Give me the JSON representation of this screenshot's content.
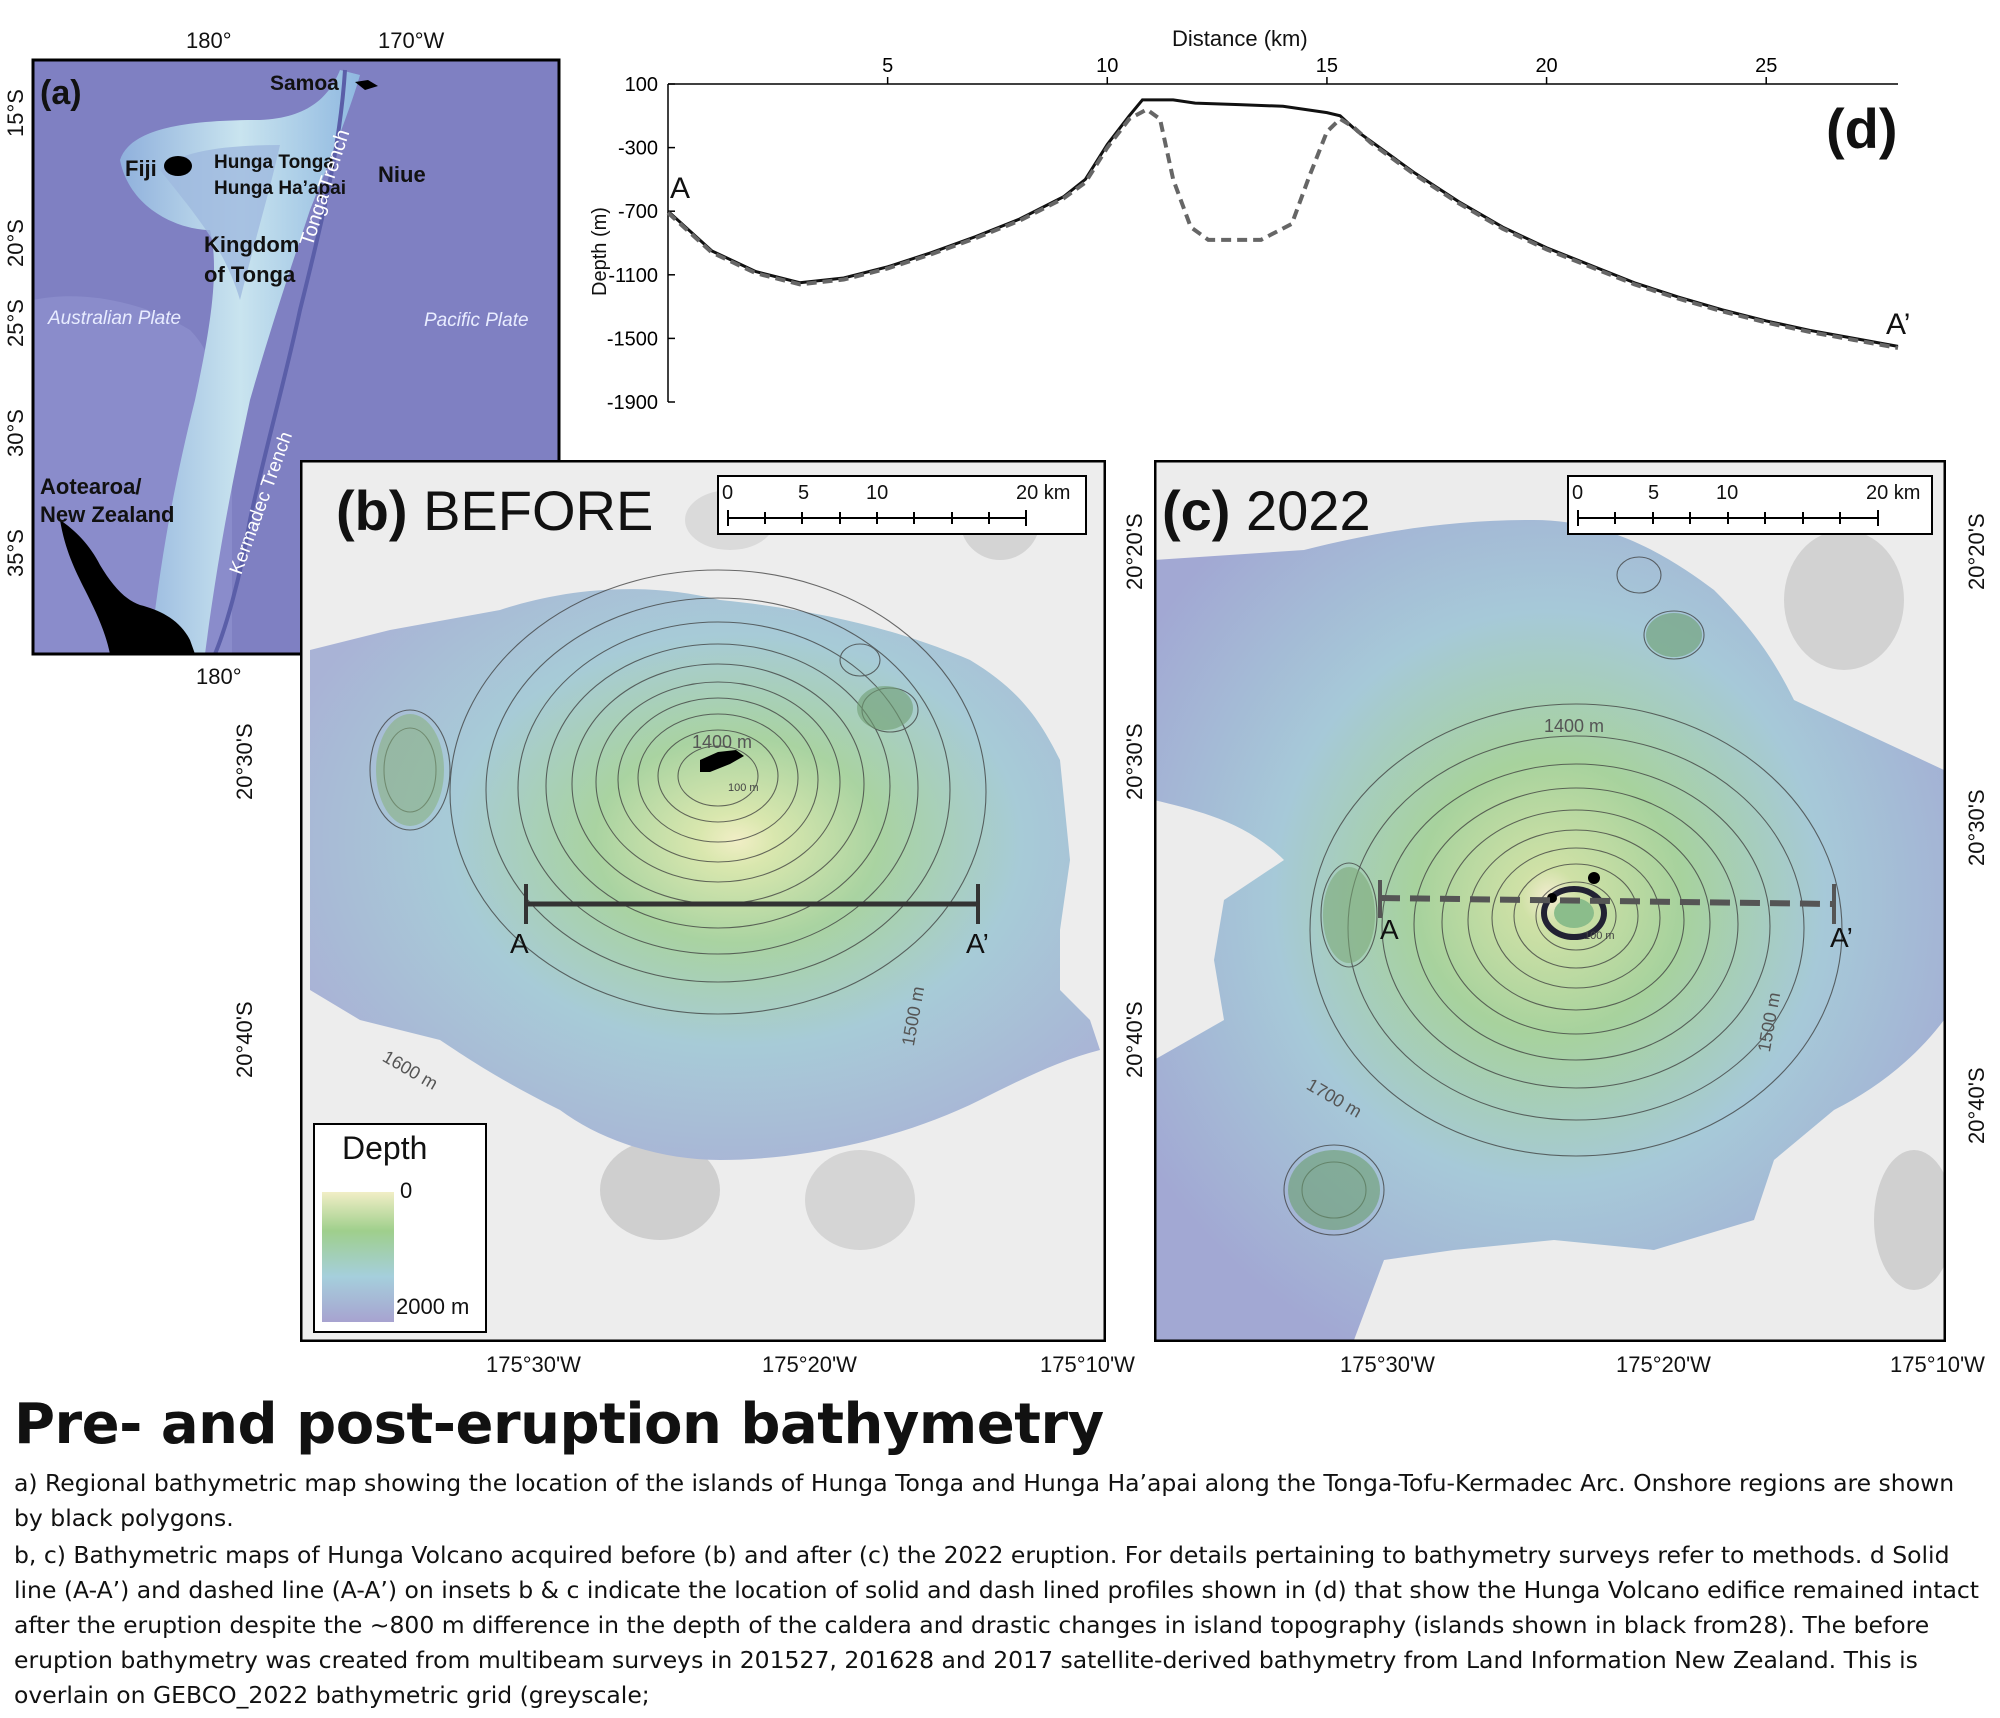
{
  "panel_a": {
    "label": "(a)",
    "top_ticks": [
      "180°",
      "170°W"
    ],
    "bottom_ticks": [
      "180°"
    ],
    "lat_ticks": [
      "15°S",
      "20°S",
      "25°S",
      "30°S",
      "35°S"
    ],
    "places": {
      "samoa": "Samoa",
      "fiji": "Fiji",
      "hunga1": "Hunga Tonga",
      "hunga2": "Hunga Ha’apai",
      "niue": "Niue",
      "kingdom1": "Kingdom",
      "kingdom2": "of Tonga",
      "tonga_trench": "Tonga Trench",
      "australian_plate": "Australian Plate",
      "pacific_plate": "Pacific Plate",
      "kermadec_trench": "Kermadec Trench",
      "nz1": "Aotearoa/",
      "nz2": "New Zealand"
    },
    "colors": {
      "ocean": "#7d7fc0",
      "arc": "#a9cfe4",
      "land": "#000000"
    }
  },
  "panel_d": {
    "label": "(d)",
    "chart_data": {
      "type": "line",
      "title": "",
      "xlabel": "Distance (km)",
      "ylabel": "Depth (m)",
      "xlim": [
        0,
        28
      ],
      "ylim": [
        -1900,
        100
      ],
      "x_ticks": [
        "5",
        "10",
        "15",
        "20",
        "25"
      ],
      "y_ticks": [
        "100",
        "-300",
        "-700",
        "-1100",
        "-1500",
        "-1900"
      ],
      "point_labels": {
        "start": "A",
        "end": "A’"
      },
      "series": [
        {
          "style": "solid",
          "color": "#111111",
          "x": [
            0,
            1,
            2,
            3,
            4,
            5,
            6,
            7,
            8,
            9,
            9.5,
            10,
            10.5,
            10.8,
            11.5,
            12,
            13,
            14,
            15,
            15.3,
            15.7,
            16,
            17,
            18,
            19,
            20,
            21,
            22,
            23,
            24,
            25,
            26,
            27,
            28
          ],
          "y": [
            -700,
            -950,
            -1080,
            -1150,
            -1120,
            -1050,
            -960,
            -860,
            -750,
            -610,
            -500,
            -280,
            -100,
            0,
            0,
            -20,
            -30,
            -40,
            -80,
            -100,
            -200,
            -260,
            -460,
            -640,
            -800,
            -930,
            -1040,
            -1150,
            -1240,
            -1320,
            -1390,
            -1450,
            -1500,
            -1550
          ]
        },
        {
          "style": "dashed",
          "color": "#666666",
          "x": [
            0,
            1,
            2,
            3,
            4,
            5,
            6,
            7,
            8,
            9,
            9.5,
            10,
            10.5,
            10.9,
            11.2,
            11.5,
            11.9,
            12.3,
            13.5,
            14.2,
            14.6,
            15,
            15.3,
            15.6,
            16,
            17,
            18,
            19,
            20,
            21,
            22,
            23,
            24,
            25,
            26,
            27,
            28
          ],
          "y": [
            -710,
            -960,
            -1090,
            -1160,
            -1130,
            -1060,
            -970,
            -870,
            -760,
            -620,
            -520,
            -300,
            -120,
            -60,
            -120,
            -500,
            -800,
            -880,
            -880,
            -780,
            -480,
            -200,
            -120,
            -170,
            -270,
            -470,
            -650,
            -810,
            -940,
            -1050,
            -1160,
            -1250,
            -1330,
            -1400,
            -1460,
            -1510,
            -1560
          ]
        }
      ]
    }
  },
  "panel_b": {
    "label_bold": "(b)",
    "label_text": "BEFORE",
    "scale_ticks": [
      "0",
      "5",
      "10",
      "20 km"
    ],
    "lat_ticks": [
      "20°30'S",
      "20°40'S"
    ],
    "lon_ticks": [
      "175°30'W",
      "175°20'W",
      "175°10'W"
    ],
    "contours": {
      "c1400": "1400 m",
      "c1500": "1500 m",
      "c1600": "1600 m",
      "c100": "100 m"
    },
    "profile": {
      "start": "A",
      "end": "A’"
    },
    "legend": {
      "title": "Depth",
      "top": "0",
      "bottom": "2000 m"
    }
  },
  "panel_c": {
    "label_bold": "(c)",
    "label_text": "2022",
    "scale_ticks": [
      "0",
      "5",
      "10",
      "20 km"
    ],
    "lat_ticks": [
      "20°20'S",
      "20°30'S",
      "20°40'S"
    ],
    "lon_ticks": [
      "175°30'W",
      "175°20'W",
      "175°10'W"
    ],
    "contours": {
      "c1400": "1400 m",
      "c1500": "1500 m",
      "c1700": "1700 m",
      "c100": "100 m"
    },
    "profile": {
      "start": "A",
      "end": "A’"
    }
  },
  "caption": {
    "title": "Pre- and post-eruption bathymetry",
    "para_a": "a) Regional bathymetric map showing the location of the islands of Hunga Tonga and Hunga Ha’apai along the Tonga-Tofu-Kermadec Arc. Onshore regions are shown by black polygons.",
    "para_bc": "b, c) Bathymetric maps of Hunga Volcano acquired before (b) and after (c) the 2022 eruption. For details pertaining to bathymetry surveys refer to methods. d Solid line (A-A’) and dashed line (A-A’) on insets b & c indicate the location of solid and dash lined profiles shown in (d) that show the Hunga Volcano edifice remained intact after the eruption despite the ~800 m difference in the depth of the caldera and drastic changes in island topography (islands shown in black from28). The before eruption bathymetry was created from multibeam surveys in 201527, 201628 and 2017 satellite-derived bathymetry from Land Information New Zealand. This is overlain on GEBCO_2022 bathymetric grid (greyscale;"
  }
}
